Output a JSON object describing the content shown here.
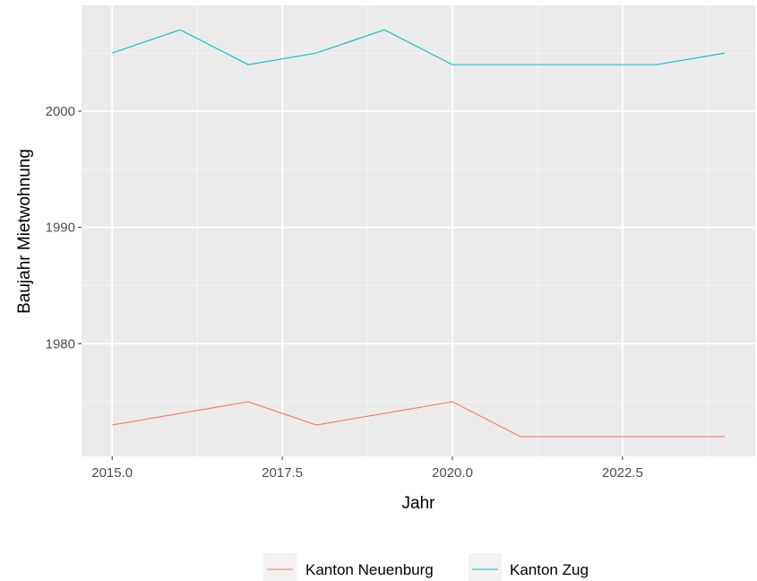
{
  "chart_data": {
    "type": "line",
    "xlabel": "Jahr",
    "ylabel": "Baujahr Mietwohnung",
    "x": [
      2015,
      2016,
      2017,
      2018,
      2019,
      2020,
      2021,
      2022,
      2023,
      2024
    ],
    "series": [
      {
        "name": "Kanton Neuenburg",
        "color": "#F8766D",
        "values": [
          1973,
          1974,
          1975,
          1973,
          1974,
          1975,
          1972,
          1972,
          1972,
          1972
        ]
      },
      {
        "name": "Kanton Zug",
        "color": "#00BFC4",
        "values": [
          2005,
          2007,
          2004,
          2005,
          2007,
          2004,
          2004,
          2004,
          2004,
          2005
        ]
      }
    ],
    "xlim": [
      2014.55,
      2024.45
    ],
    "ylim": [
      1970.3,
      2009.1
    ],
    "x_ticks": [
      2015.0,
      2017.5,
      2020.0,
      2022.5
    ],
    "x_tick_labels": [
      "2015.0",
      "2017.5",
      "2020.0",
      "2022.5"
    ],
    "y_ticks": [
      1980,
      1990,
      2000
    ],
    "y_tick_labels": [
      "1980",
      "1990",
      "2000"
    ],
    "grid": true,
    "panel_background": "#EBEBEB",
    "legend_position": "bottom"
  }
}
